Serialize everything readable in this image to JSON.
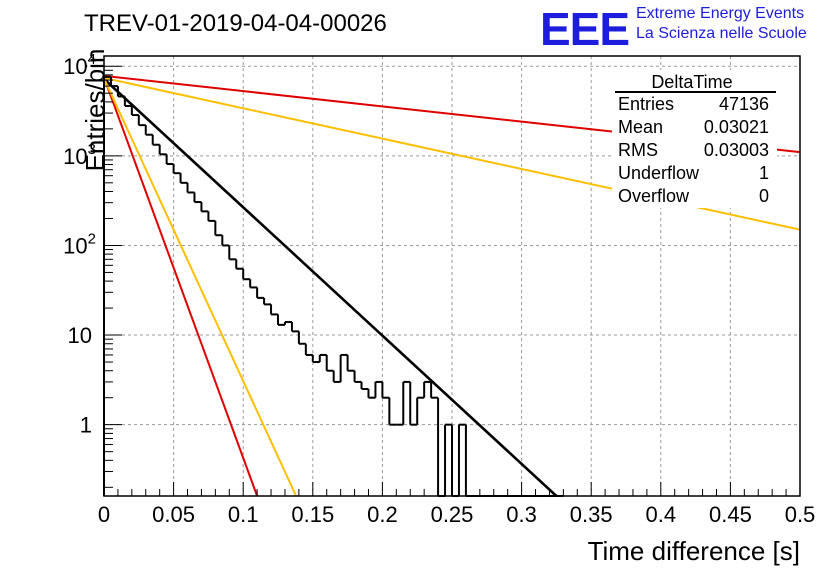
{
  "header": {
    "title": "TREV-01-2019-04-04-00026",
    "logo_mark": "EEE",
    "logo_line1": "Extreme Energy Events",
    "logo_line2": "La Scienza nelle Scuole"
  },
  "stats_box": {
    "name": "DeltaTime",
    "rows": [
      {
        "label": "Entries",
        "value": "47136"
      },
      {
        "label": "Mean",
        "value": "0.03021"
      },
      {
        "label": "RMS",
        "value": "0.03003"
      },
      {
        "label": "Underflow",
        "value": "1"
      },
      {
        "label": "Overflow",
        "value": "0"
      }
    ]
  },
  "colors": {
    "histogram": "#000000",
    "fit": "#000000",
    "red": "#e00000",
    "orange": "#ffbf00",
    "grid": "#9a9a9a",
    "logo": "#1d1ddc"
  },
  "chart_data": {
    "type": "line",
    "title": "TREV-01-2019-04-04-00026",
    "xlabel": "Time difference [s]",
    "ylabel": "Entries/bin",
    "xlim": [
      0,
      0.5
    ],
    "ylim": [
      0.16,
      13000
    ],
    "yscale": "log",
    "grid": true,
    "x_ticks": [
      "0",
      "0.05",
      "0.1",
      "0.15",
      "0.2",
      "0.25",
      "0.3",
      "0.35",
      "0.4",
      "0.45",
      "0.5"
    ],
    "y_ticks": [
      "1",
      "10",
      "10^2",
      "10^3",
      "10^4"
    ],
    "histogram": {
      "bin_width": 0.005,
      "bin_start": 0,
      "counts": [
        7600,
        6000,
        4600,
        3600,
        2850,
        2200,
        1720,
        1330,
        1040,
        810,
        640,
        500,
        390,
        305,
        240,
        188,
        130,
        100,
        70,
        55,
        42,
        34,
        26,
        22,
        17,
        13,
        14,
        11,
        8,
        6,
        5,
        6,
        4,
        3,
        6,
        4,
        3,
        2.5,
        2,
        3,
        2,
        1,
        1,
        3,
        1,
        2,
        3,
        2,
        0,
        1,
        0,
        1,
        0,
        0,
        0,
        0,
        0,
        0,
        0,
        0,
        0,
        0,
        0,
        0,
        0,
        0
      ]
    },
    "series": [
      {
        "points": [
          [
            0,
            7200
          ],
          [
            0.325,
            0.16
          ]
        ]
      },
      {
        "points": [
          [
            0,
            7500
          ],
          [
            0.11,
            0.16
          ]
        ]
      },
      {
        "points": [
          [
            0,
            7300
          ],
          [
            0.138,
            0.16
          ]
        ]
      },
      {
        "points": [
          [
            0,
            7800
          ],
          [
            0.5,
            1100
          ]
        ]
      },
      {
        "points": [
          [
            0,
            7400
          ],
          [
            0.5,
            150
          ]
        ]
      }
    ]
  }
}
